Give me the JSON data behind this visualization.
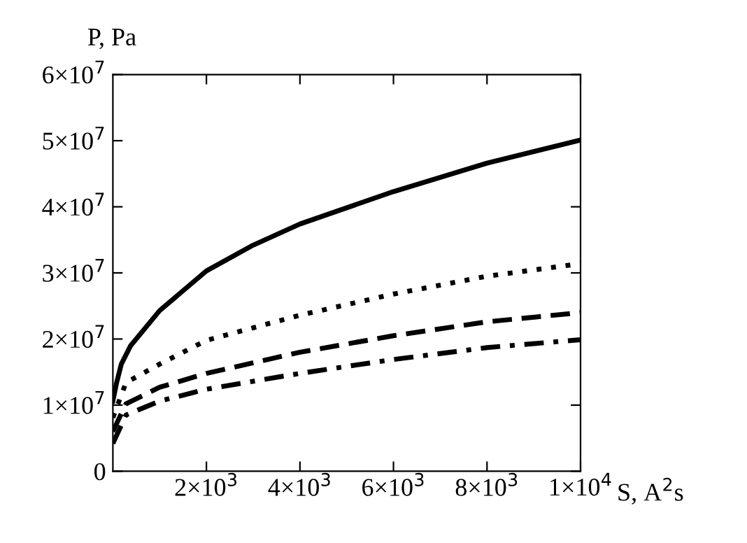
{
  "chart_data": {
    "type": "line",
    "xlabel": "S, A$^{2}$s",
    "ylabel": "P, Pa",
    "xlim": [
      0,
      10000
    ],
    "ylim": [
      0,
      60000000
    ],
    "xticks": [
      {
        "value": 2000,
        "label": "2×10$^{3}$"
      },
      {
        "value": 4000,
        "label": "4×10$^{3}$"
      },
      {
        "value": 6000,
        "label": "6×10$^{3}$"
      },
      {
        "value": 8000,
        "label": "8×10$^{3}$"
      },
      {
        "value": 10000,
        "label": "1×10$^{4}$"
      }
    ],
    "yticks": [
      0,
      {
        "value": 10000000,
        "label": "1×10$^{7}$"
      },
      {
        "value": 20000000,
        "label": "2×10$^{7}$"
      },
      {
        "value": 30000000,
        "label": "3×10$^{7}$"
      },
      {
        "value": 40000000,
        "label": "4×10$^{7}$"
      },
      {
        "value": 50000000,
        "label": "5×10$^{7}$"
      },
      {
        "value": 60000000,
        "label": "6×10$^{7}$"
      }
    ],
    "grid": false,
    "legend": false,
    "x": [
      0,
      80,
      180,
      380,
      1000,
      2000,
      3000,
      4000,
      6000,
      8000,
      10000
    ],
    "series": [
      {
        "color": "#000000",
        "line_style": "solid",
        "values": [
          10600000,
          13400000,
          16200000,
          19000000,
          24300000,
          30300000,
          34200000,
          37400000,
          42300000,
          46600000,
          50100000
        ]
      },
      {
        "color": "#000000",
        "line_style": "dotted",
        "x": [
          0,
          280,
          1000,
          2000,
          4000,
          6000,
          8000,
          10000
        ],
        "values": [
          8100000,
          13400000,
          16200000,
          19800000,
          23600000,
          26800000,
          29500000,
          31400000
        ]
      },
      {
        "color": "#000000",
        "line_style": "dashed",
        "x": [
          0,
          280,
          1000,
          2000,
          4000,
          6000,
          8000,
          10000
        ],
        "values": [
          6000000,
          10200000,
          12700000,
          14800000,
          18000000,
          20500000,
          22600000,
          24000000
        ]
      },
      {
        "color": "#000000",
        "line_style": "dashdot",
        "x": [
          0,
          280,
          1000,
          2000,
          4000,
          6000,
          8000,
          10000
        ],
        "values": [
          4200000,
          8500000,
          10600000,
          12400000,
          14800000,
          16900000,
          18700000,
          19900000
        ]
      }
    ]
  }
}
